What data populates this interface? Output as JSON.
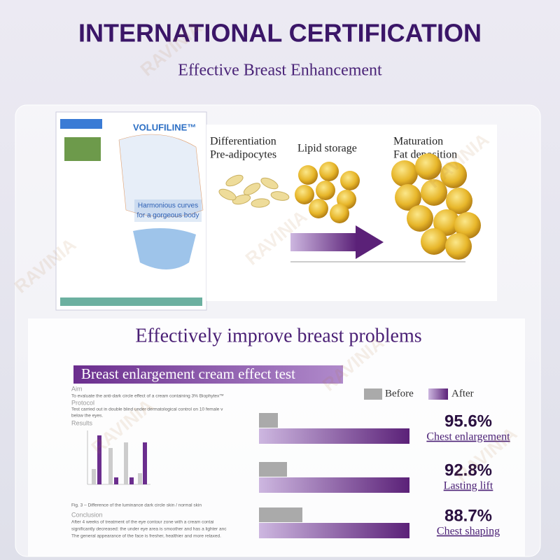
{
  "header": {
    "title": "INTERNATIONAL CERTIFICATION",
    "subtitle": "Effective Breast Enhancement"
  },
  "watermark": "RAVINIA",
  "certificate": {
    "brand": "VOLUFILINE™",
    "tagline": [
      "Harmonious curves",
      "for a gorgeous body"
    ]
  },
  "process": {
    "stages": [
      {
        "lines": [
          "Differentiation",
          "Pre-adipocytes"
        ]
      },
      {
        "lines": [
          "Lipid storage"
        ]
      },
      {
        "lines": [
          "Maturation",
          "Fat deposition"
        ]
      }
    ]
  },
  "section": {
    "title": "Effectively improve breast problems"
  },
  "test": {
    "banner": "Breast enlargement cream effect test",
    "document": {
      "aim_heading": "Aim",
      "aim_text": "To evaluate the anti-dark circle effect of a cream containing 3% Biophytex™",
      "protocol_heading": "Protocol",
      "protocol_lines": [
        "Test carried out in double blind under dermatological control on 10 female v",
        "below the eyes."
      ],
      "results_heading": "Results",
      "figure_caption": "Fig. 3 – Difference of the luminance dark circle skin / normal skin",
      "conclusion_heading": "Conclusion",
      "conclusion_lines": [
        "After 4 weeks of treatment of the eye contour zone with a cream contai",
        "significantly decreased: the under eye area is smoother and has a lighter anc",
        "The general appearance of the face is fresher, healthier and more relaxed."
      ]
    },
    "legend": {
      "before": "Before",
      "after": "After"
    },
    "results": [
      {
        "value": "95.6%",
        "label": "Chest enlargement"
      },
      {
        "value": "92.8%",
        "label": "Lasting lift"
      },
      {
        "value": "88.7%",
        "label": "Chest shaping"
      }
    ]
  }
}
